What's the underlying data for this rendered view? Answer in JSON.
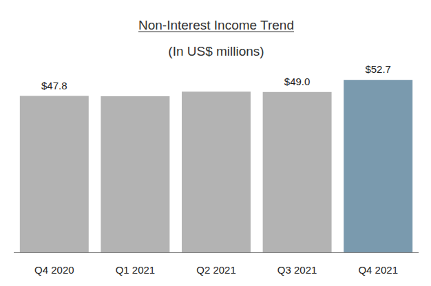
{
  "chart_data": {
    "type": "bar",
    "title": "Non-Interest Income Trend",
    "subtitle": "(In US$ millions)",
    "categories": [
      "Q4 2020",
      "Q1 2021",
      "Q2 2021",
      "Q3 2021",
      "Q4 2021"
    ],
    "values": [
      47.8,
      47.7,
      49.1,
      49.0,
      52.7
    ],
    "value_labels": [
      "$47.8",
      null,
      null,
      "$49.0",
      "$52.7"
    ],
    "colors": [
      "#b3b3b3",
      "#b3b3b3",
      "#b3b3b3",
      "#b3b3b3",
      "#7a9aae"
    ],
    "ylim": [
      0,
      54
    ],
    "data_labels": true,
    "tick_labels": "x",
    "grid": false
  }
}
